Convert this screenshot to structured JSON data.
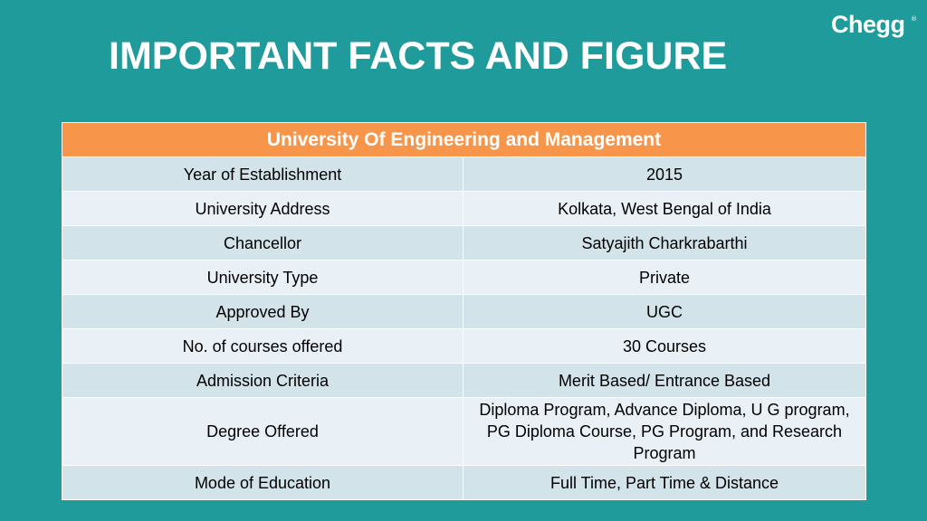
{
  "slide": {
    "title": "IMPORTANT FACTS AND FIGURE",
    "logo_text": "Chegg",
    "logo_mark": "®"
  },
  "table": {
    "header": "University Of Engineering and Management",
    "rows": [
      {
        "label": "Year of Establishment",
        "value": "2015"
      },
      {
        "label": "University Address",
        "value": "Kolkata, West Bengal of India"
      },
      {
        "label": "Chancellor",
        "value": "Satyajith Charkrabarthi"
      },
      {
        "label": "University Type",
        "value": "Private"
      },
      {
        "label": "Approved By",
        "value": "UGC"
      },
      {
        "label": "No. of courses offered",
        "value": "30 Courses"
      },
      {
        "label": "Admission Criteria",
        "value": "Merit Based/ Entrance Based"
      },
      {
        "label": "Degree Offered",
        "value": "Diploma Program, Advance Diploma, U G program, PG Diploma Course, PG Program, and Research Program"
      },
      {
        "label": "Mode of Education",
        "value": "Full Time, Part Time & Distance"
      }
    ]
  },
  "colors": {
    "background": "#1f9b9b",
    "header": "#f7964a",
    "row_odd": "#d2e3e9",
    "row_even": "#e9f0f6"
  }
}
